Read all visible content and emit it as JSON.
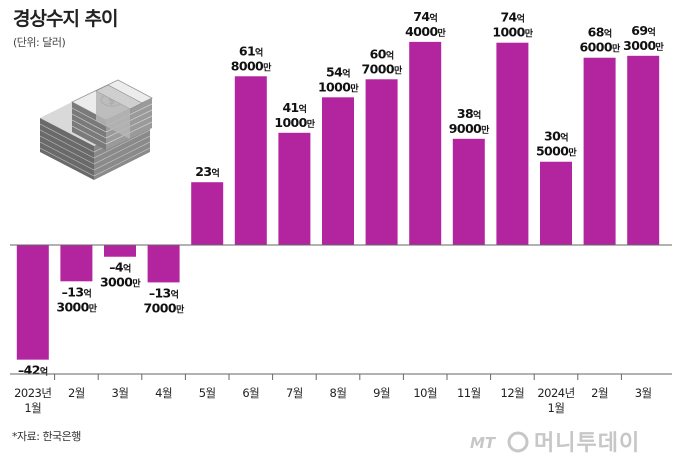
{
  "header": {
    "title": "경상수지 추이",
    "unit": "(단위: 달러)"
  },
  "footer": {
    "source": "*자료: 한국은행",
    "logo_mt": "MT",
    "logo_text": "머니투데이"
  },
  "colors": {
    "bar": "#b2259e",
    "axis": "#666666",
    "logo": "#bfbfbf"
  },
  "illustration": {
    "icon": "money-stack-icon"
  },
  "chart_data": {
    "type": "bar",
    "title": "경상수지 추이",
    "unit": "억 달러",
    "ylim": [
      -45,
      80
    ],
    "categories": [
      [
        "2023년",
        "1월"
      ],
      [
        "2월"
      ],
      [
        "3월"
      ],
      [
        "4월"
      ],
      [
        "5월"
      ],
      [
        "6월"
      ],
      [
        "7월"
      ],
      [
        "8월"
      ],
      [
        "9월"
      ],
      [
        "10월"
      ],
      [
        "11월"
      ],
      [
        "12월"
      ],
      [
        "2024년",
        "1월"
      ],
      [
        "2월"
      ],
      [
        "3월"
      ]
    ],
    "values": [
      -42,
      -13.3,
      -4.3,
      -13.7,
      23,
      61.8,
      41.1,
      54.1,
      60.7,
      74.4,
      38.9,
      74.1,
      30.5,
      68.6,
      69.3
    ],
    "labels": [
      [
        [
          "–42",
          "억"
        ]
      ],
      [
        [
          "–13",
          "억"
        ],
        [
          "3000",
          "만"
        ]
      ],
      [
        [
          "–4",
          "억"
        ],
        [
          "3000",
          "만"
        ]
      ],
      [
        [
          "–13",
          "억"
        ],
        [
          "7000",
          "만"
        ]
      ],
      [
        [
          "23",
          "억"
        ]
      ],
      [
        [
          "61",
          "억"
        ],
        [
          "8000",
          "만"
        ]
      ],
      [
        [
          "41",
          "억"
        ],
        [
          "1000",
          "만"
        ]
      ],
      [
        [
          "54",
          "억"
        ],
        [
          "1000",
          "만"
        ]
      ],
      [
        [
          "60",
          "억"
        ],
        [
          "7000",
          "만"
        ]
      ],
      [
        [
          "74",
          "억"
        ],
        [
          "4000",
          "만"
        ]
      ],
      [
        [
          "38",
          "억"
        ],
        [
          "9000",
          "만"
        ]
      ],
      [
        [
          "74",
          "억"
        ],
        [
          "1000",
          "만"
        ]
      ],
      [
        [
          "30",
          "억"
        ],
        [
          "5000",
          "만"
        ]
      ],
      [
        [
          "68",
          "억"
        ],
        [
          "6000",
          "만"
        ]
      ],
      [
        [
          "69",
          "억"
        ],
        [
          "3000",
          "만"
        ]
      ]
    ]
  }
}
